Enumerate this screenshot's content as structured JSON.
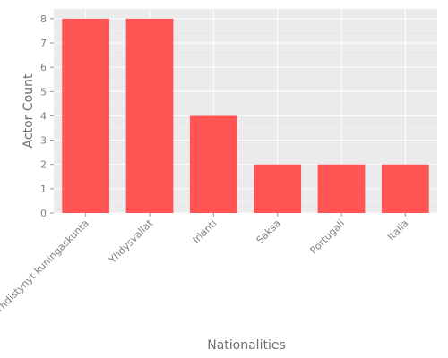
{
  "chart_data": {
    "type": "bar",
    "categories": [
      "Yhdistynyt kuningaskunta",
      "Yhdysvallat",
      "Irlanti",
      "Saksa",
      "Portugali",
      "Italia"
    ],
    "values": [
      8,
      8,
      4,
      2,
      2,
      2
    ],
    "title": "",
    "xlabel": "Nationalities",
    "ylabel": "Actor Count",
    "ylim": [
      0,
      8.4
    ],
    "yticks": [
      0,
      1,
      2,
      3,
      4,
      5,
      6,
      7,
      8
    ],
    "grid": true,
    "legend": "none",
    "colors": {
      "bar": "#ff5555",
      "panel_background": "#ebebeb",
      "grid": "#ffffff"
    }
  }
}
